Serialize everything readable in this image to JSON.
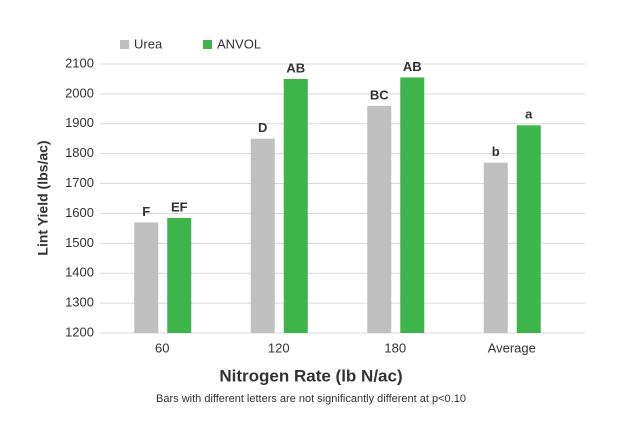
{
  "chart_data": {
    "type": "bar",
    "categories": [
      "60",
      "120",
      "180",
      "Average"
    ],
    "series": [
      {
        "name": "Urea",
        "color": "#bfbfbf",
        "values": [
          1570,
          1850,
          1960,
          1770
        ],
        "letters": [
          "F",
          "D",
          "BC",
          "b"
        ]
      },
      {
        "name": "ANVOL",
        "color": "#3db54a",
        "values": [
          1585,
          2050,
          2055,
          1895
        ],
        "letters": [
          "EF",
          "AB",
          "AB",
          "a"
        ]
      }
    ],
    "ylim": [
      1200,
      2100
    ],
    "yticks": [
      1200,
      1300,
      1400,
      1500,
      1600,
      1700,
      1800,
      1900,
      2000,
      2100
    ],
    "grid": true,
    "ylabel": "Lint Yield (lbs/ac)",
    "xlabel": "Nitrogen Rate (lb N/ac)",
    "note": "Bars with different letters are not significantly different at p<0.10",
    "legend": "top-left"
  }
}
